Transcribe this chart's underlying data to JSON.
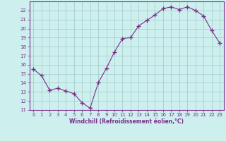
{
  "x": [
    0,
    1,
    2,
    3,
    4,
    5,
    6,
    7,
    8,
    9,
    10,
    11,
    12,
    13,
    14,
    15,
    16,
    17,
    18,
    19,
    20,
    21,
    22,
    23
  ],
  "y": [
    15.5,
    14.8,
    13.2,
    13.4,
    13.1,
    12.8,
    11.8,
    11.2,
    14.0,
    15.6,
    17.4,
    18.9,
    19.0,
    20.3,
    20.9,
    21.5,
    22.2,
    22.4,
    22.1,
    22.4,
    22.0,
    21.4,
    19.8,
    18.4
  ],
  "ylim": [
    11,
    23
  ],
  "xlim": [
    -0.5,
    23.5
  ],
  "yticks": [
    11,
    12,
    13,
    14,
    15,
    16,
    17,
    18,
    19,
    20,
    21,
    22
  ],
  "xticks": [
    0,
    1,
    2,
    3,
    4,
    5,
    6,
    7,
    8,
    9,
    10,
    11,
    12,
    13,
    14,
    15,
    16,
    17,
    18,
    19,
    20,
    21,
    22,
    23
  ],
  "xlabel": "Windchill (Refroidissement éolien,°C)",
  "line_color": "#7b2d8b",
  "marker": "+",
  "bg_color": "#cdf0ee",
  "grid_color": "#a0c8c8",
  "axis_color": "#7b2d8b",
  "font_color": "#7b2d8b",
  "tick_fontsize": 5.0,
  "xlabel_fontsize": 5.5,
  "linewidth": 0.8,
  "markersize": 4,
  "markeredgewidth": 1.0
}
